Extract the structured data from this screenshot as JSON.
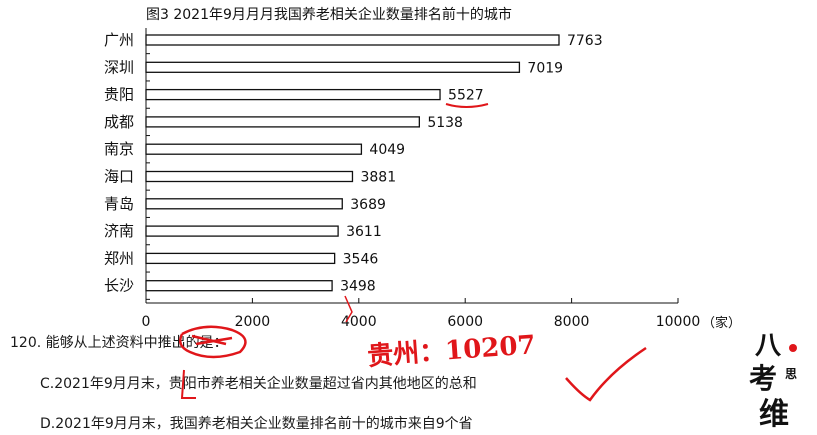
{
  "chart_data": {
    "type": "bar",
    "orientation": "horizontal",
    "title": "图3  2021年9月月月我国养老相关企业数量排名前十的城市",
    "categories": [
      "广州",
      "深圳",
      "贵阳",
      "成都",
      "南京",
      "海口",
      "青岛",
      "济南",
      "郑州",
      "长沙"
    ],
    "values": [
      7763,
      7019,
      5527,
      5138,
      4049,
      3881,
      3689,
      3611,
      3546,
      3498
    ],
    "value_labels": [
      "7763",
      "7019",
      "5527",
      "5138",
      "4049",
      "3881",
      "3689",
      "3611",
      "3546",
      "3498"
    ],
    "xlim": [
      0,
      10000
    ],
    "xticks": [
      0,
      2000,
      4000,
      6000,
      8000,
      10000
    ],
    "xtick_labels": [
      "0",
      "2000",
      "4000",
      "6000",
      "8000",
      "10000"
    ],
    "x_unit": "（家）",
    "grid": false,
    "bar_fill": "#ffffff",
    "bar_stroke": "#111111"
  },
  "question": {
    "stem": "120. 能够从上述资料中推出的是：",
    "option_c": "C.2021年9月月末，贵阳市养老相关企业数量超过省内其他地区的总和",
    "option_d": "D.2021年9月月末，我国养老相关企业数量排名前十的城市来自9个省"
  },
  "annotations": {
    "handwriting": "贵州：10207",
    "ink_color": "#e0161a",
    "marks": [
      "underline-5527",
      "checkmark",
      "circled-scribble"
    ]
  },
  "logo": {
    "text_lines": [
      "八",
      "考",
      "维"
    ],
    "small": "思"
  }
}
